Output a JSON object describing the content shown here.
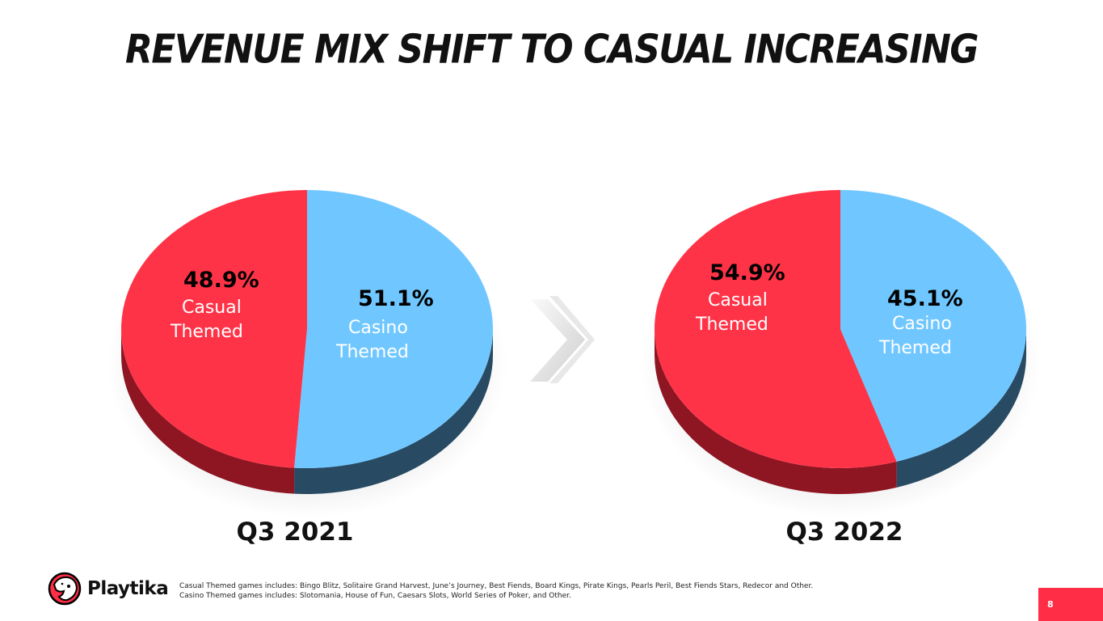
{
  "title": "REVENUE MIX SHIFT TO CASUAL INCREASING",
  "colors": {
    "casual": "#ff3347",
    "casino": "#70c7ff",
    "casual_dark": "#8e1522",
    "casino_dark": "#284a63",
    "accent": "#ff2d45"
  },
  "chart_data": [
    {
      "type": "pie",
      "title": "Q3 2021",
      "slices": [
        {
          "label": "Casual Themed",
          "value": 48.9,
          "value_label": "48.9%",
          "label_lines": [
            "Casual",
            "Themed"
          ]
        },
        {
          "label": "Casino Themed",
          "value": 51.1,
          "value_label": "51.1%",
          "label_lines": [
            "Casino",
            "Themed"
          ]
        }
      ]
    },
    {
      "type": "pie",
      "title": "Q3 2022",
      "slices": [
        {
          "label": "Casual Themed",
          "value": 54.9,
          "value_label": "54.9%",
          "label_lines": [
            "Casual",
            "Themed"
          ]
        },
        {
          "label": "Casino Themed",
          "value": 45.1,
          "value_label": "45.1%",
          "label_lines": [
            "Casino",
            "Themed"
          ]
        }
      ]
    }
  ],
  "footer": {
    "logo_text": "Playtika",
    "footnote_1": "Casual Themed games includes: Bingo Blitz, Solitaire Grand Harvest, June’s Journey, Best Fiends, Board Kings, Pirate Kings, Pearls Peril, Best Fiends Stars, Redecor and Other.",
    "footnote_2": "Casino Themed games includes: Slotomania, House of Fun, Caesars Slots, World Series of Poker, and Other.",
    "page_number": "8"
  },
  "icons": {
    "arrow": "double-chevron-right-icon",
    "logo": "cheetah-logo-icon"
  }
}
